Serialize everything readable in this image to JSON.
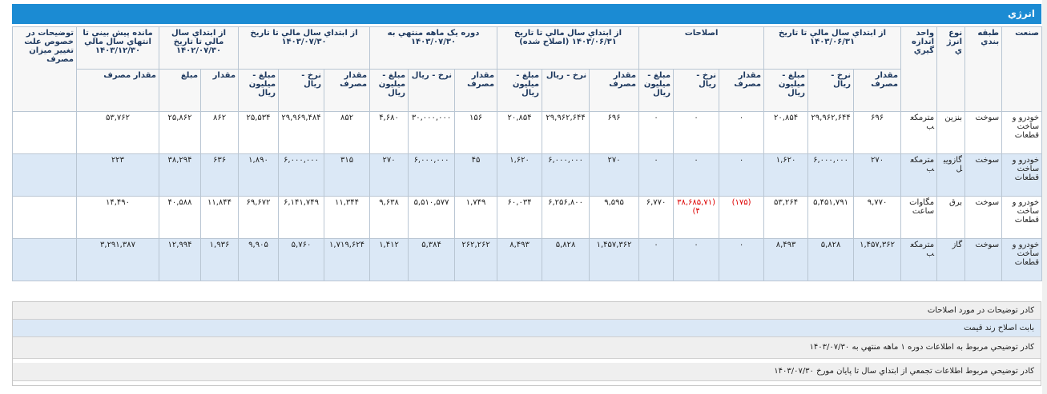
{
  "title": "انرژي",
  "table": {
    "lead_columns": [
      "صنعت",
      "طبقه بندي",
      "نوع انرژي",
      "واحد اندازه گيري"
    ],
    "groups": [
      {
        "label": "از ابتداي سال مالي تا تاريخ ۱۴۰۳/۰۶/۳۱",
        "columns": [
          "مقدار مصرف",
          "نرخ - ريال",
          "مبلغ - ميليون ريال"
        ]
      },
      {
        "label": "اصلاحات",
        "columns": [
          "مقدار مصرف",
          "نرخ - ريال",
          "مبلغ - ميليون ريال"
        ]
      },
      {
        "label": "از ابتداي سال مالي تا تاريخ ۱۴۰۳/۰۶/۳۱ (اصلاح شده)",
        "columns": [
          "مقدار مصرف",
          "نرخ - ريال",
          "مبلغ - ميليون ريال"
        ]
      },
      {
        "label": "دوره يک ماهه منتهي به ۱۴۰۳/۰۷/۳۰",
        "columns": [
          "مقدار مصرف",
          "نرخ - ريال",
          "مبلغ - ميليون ريال"
        ]
      },
      {
        "label": "از ابتداي سال مالي تا تاريخ ۱۴۰۳/۰۷/۳۰",
        "columns": [
          "مقدار مصرف",
          "نرخ - ريال",
          "مبلغ - ميليون ريال"
        ]
      },
      {
        "label": "از ابتداي سال مالي تا تاريخ ۱۴۰۲/۰۷/۳۰",
        "columns": [
          "مقدار",
          "مبلغ"
        ]
      },
      {
        "label": "مانده پيش بيني تا انتهاي سال مالي ۱۴۰۳/۱۲/۳۰",
        "columns": [
          "مقدار مصرف"
        ]
      }
    ],
    "comment_column": "توضيحات در خصوص علت تغيير ميزان مصرف",
    "rows": [
      [
        "خودرو و ساخت قطعات",
        "سوخت",
        "بنزين",
        "مترمکعب",
        "۶۹۶",
        "۲۹,۹۶۲,۶۴۴",
        "۲۰,۸۵۴",
        "۰",
        "۰",
        "۰",
        "۶۹۶",
        "۲۹,۹۶۲,۶۴۴",
        "۲۰,۸۵۴",
        "۱۵۶",
        "۳۰,۰۰۰,۰۰۰",
        "۴,۶۸۰",
        "۸۵۲",
        "۲۹,۹۶۹,۴۸۴",
        "۲۵,۵۳۴",
        "۸۶۲",
        "۲۵,۸۶۲",
        "۵۳,۷۶۲",
        null
      ],
      [
        "خودرو و ساخت قطعات",
        "سوخت",
        "گازوييل",
        "مترمکعب",
        "۲۷۰",
        "۶,۰۰۰,۰۰۰",
        "۱,۶۲۰",
        "۰",
        "۰",
        "۰",
        "۲۷۰",
        "۶,۰۰۰,۰۰۰",
        "۱,۶۲۰",
        "۴۵",
        "۶,۰۰۰,۰۰۰",
        "۲۷۰",
        "۳۱۵",
        "۶,۰۰۰,۰۰۰",
        "۱,۸۹۰",
        "۶۳۶",
        "۳۸,۲۹۴",
        "۲۲۳",
        null
      ],
      [
        "خودرو و ساخت قطعات",
        "سوخت",
        "برق",
        "مگاوات ساعت",
        "۹,۷۷۰",
        "۵,۴۵۱,۷۹۱",
        "۵۳,۲۶۴",
        "(۱۷۵)",
        "(۳۸,۶۸۵,۷۱۴)",
        "۶,۷۷۰",
        "۹,۵۹۵",
        "۶,۲۵۶,۸۰۰",
        "۶۰,۰۳۴",
        "۱,۷۴۹",
        "۵,۵۱۰,۵۷۷",
        "۹,۶۳۸",
        "۱۱,۳۴۴",
        "۶,۱۴۱,۷۴۹",
        "۶۹,۶۷۲",
        "۱۱,۸۴۴",
        "۴۰,۵۸۸",
        "۱۴,۴۹۰",
        null
      ],
      [
        "خودرو و ساخت قطعات",
        "سوخت",
        "گاز",
        "مترمکعب",
        "۱,۴۵۷,۳۶۲",
        "۵,۸۲۸",
        "۸,۴۹۳",
        "۰",
        "۰",
        "۰",
        "۱,۴۵۷,۳۶۲",
        "۵,۸۲۸",
        "۸,۴۹۳",
        "۲۶۲,۲۶۲",
        "۵,۳۸۴",
        "۱,۴۱۲",
        "۱,۷۱۹,۶۲۴",
        "۵,۷۶۰",
        "۹,۹۰۵",
        "۱,۹۳۶",
        "۱۲,۹۹۴",
        "۳,۲۹۱,۳۸۷",
        null
      ]
    ]
  },
  "notes": {
    "corrections_label": "کادر توضيحات در مورد اصلاحات",
    "corrections_text": "بابت اصلاح رند قيمت",
    "monthly_label": "کادر توضيحي مربوط به اطلاعات دوره ۱ ماهه منتهي به ۱۴۰۳/۰۷/۳۰",
    "cumulative_label": "کادر توضيحي مربوط اطلاعات تجمعي از ابتداي سال تا پايان مورخ ۱۴۰۳/۰۷/۳۰"
  }
}
